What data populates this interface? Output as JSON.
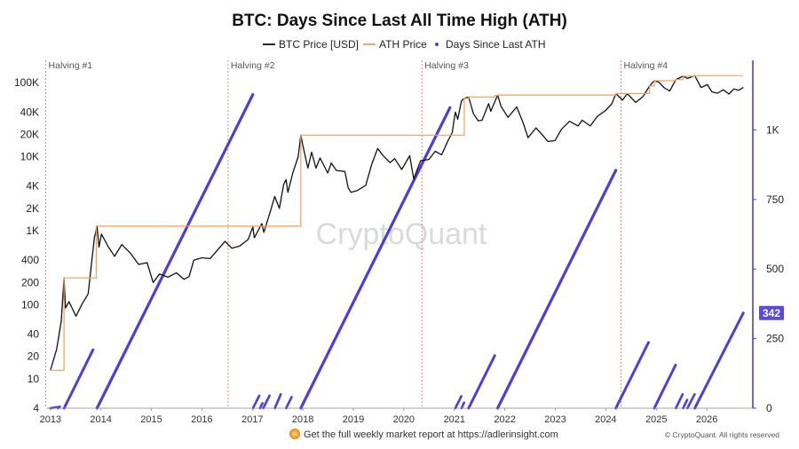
{
  "chart_data": {
    "type": "line",
    "title": "BTC: Days Since Last All Time High (ATH)",
    "legend": {
      "placement": "top-center",
      "items": [
        {
          "label": "BTC Price [USD]",
          "color": "#111111",
          "style": "line"
        },
        {
          "label": "ATH Price",
          "color": "#f0a060",
          "style": "line"
        },
        {
          "label": "Days Since Last ATH",
          "color": "#4a3fd8",
          "style": "dot"
        }
      ]
    },
    "x_axis": {
      "type": "time",
      "range": [
        "2012-12-01",
        "2026-11-30"
      ],
      "ticks": [
        "2013",
        "2014",
        "2015",
        "2016",
        "2017",
        "2018",
        "2019",
        "2020",
        "2021",
        "2022",
        "2023",
        "2024",
        "2025",
        "2026"
      ]
    },
    "y_left": {
      "scale": "log",
      "range": [
        4,
        200000
      ],
      "ticks": [
        4,
        10,
        20,
        40,
        100,
        200,
        400,
        1000,
        2000,
        4000,
        10000,
        20000,
        40000,
        100000
      ],
      "tick_labels": [
        "4",
        "10",
        "20",
        "40",
        "100",
        "200",
        "400",
        "1K",
        "2K",
        "4K",
        "10K",
        "20K",
        "40K",
        "100K"
      ]
    },
    "y_right": {
      "scale": "linear",
      "range": [
        0,
        1250
      ],
      "ticks": [
        0,
        250,
        500,
        750,
        1000
      ],
      "tick_labels": [
        "0",
        "250",
        "500",
        "750",
        "1K"
      ]
    },
    "halvings": [
      {
        "label": "Halving #1",
        "date": "2012-11-28"
      },
      {
        "label": "Halving #2",
        "date": "2016-07-09"
      },
      {
        "label": "Halving #3",
        "date": "2020-05-11"
      },
      {
        "label": "Halving #4",
        "date": "2024-04-20"
      }
    ],
    "current_value_badge": "342",
    "series": [
      {
        "name": "BTC Price [USD]",
        "x": [
          "2013-01-01",
          "2013-02-15",
          "2013-03-20",
          "2013-04-09",
          "2013-04-20",
          "2013-05-15",
          "2013-07-05",
          "2013-08-15",
          "2013-10-01",
          "2013-11-15",
          "2013-12-04",
          "2013-12-18",
          "2014-01-05",
          "2014-02-25",
          "2014-04-10",
          "2014-06-01",
          "2014-08-01",
          "2014-10-01",
          "2014-12-01",
          "2015-01-14",
          "2015-03-01",
          "2015-05-01",
          "2015-07-01",
          "2015-08-25",
          "2015-10-01",
          "2015-11-04",
          "2016-01-01",
          "2016-03-01",
          "2016-06-17",
          "2016-08-05",
          "2016-10-01",
          "2016-12-01",
          "2017-01-04",
          "2017-01-15",
          "2017-03-10",
          "2017-03-25",
          "2017-05-10",
          "2017-06-11",
          "2017-07-15",
          "2017-08-15",
          "2017-09-01",
          "2017-09-15",
          "2017-10-20",
          "2017-11-28",
          "2017-12-17",
          "2018-01-01",
          "2018-02-06",
          "2018-03-05",
          "2018-04-06",
          "2018-05-05",
          "2018-06-30",
          "2018-07-25",
          "2018-09-01",
          "2018-11-01",
          "2018-11-25",
          "2018-12-15",
          "2019-02-01",
          "2019-04-01",
          "2019-05-15",
          "2019-06-26",
          "2019-08-01",
          "2019-09-24",
          "2019-10-27",
          "2019-12-17",
          "2020-02-13",
          "2020-03-13",
          "2020-05-01",
          "2020-07-01",
          "2020-08-15",
          "2020-10-01",
          "2020-11-15",
          "2020-12-16",
          "2021-01-08",
          "2021-01-25",
          "2021-02-21",
          "2021-03-13",
          "2021-04-14",
          "2021-05-19",
          "2021-06-22",
          "2021-07-20",
          "2021-09-06",
          "2021-09-21",
          "2021-11-10",
          "2021-12-04",
          "2022-01-24",
          "2022-03-28",
          "2022-05-12",
          "2022-06-18",
          "2022-08-14",
          "2022-10-01",
          "2022-11-09",
          "2022-12-30",
          "2023-02-15",
          "2023-04-14",
          "2023-06-15",
          "2023-07-14",
          "2023-09-11",
          "2023-11-01",
          "2023-12-31",
          "2024-02-15",
          "2024-03-14",
          "2024-05-01",
          "2024-06-05",
          "2024-08-05",
          "2024-09-27",
          "2024-11-13",
          "2024-12-17",
          "2025-01-20",
          "2025-02-28",
          "2025-04-08",
          "2025-05-22",
          "2025-07-14",
          "2025-08-14",
          "2025-10-06",
          "2025-11-20",
          "2026-01-05",
          "2026-02-06",
          "2026-03-20",
          "2026-05-01",
          "2026-06-10",
          "2026-07-15",
          "2026-08-20",
          "2026-09-22"
        ],
        "values": [
          13,
          25,
          60,
          230,
          90,
          110,
          70,
          100,
          140,
          800,
          1150,
          600,
          900,
          600,
          450,
          650,
          500,
          350,
          370,
          200,
          260,
          235,
          270,
          220,
          240,
          400,
          430,
          420,
          720,
          580,
          620,
          760,
          1120,
          800,
          1250,
          950,
          1800,
          2900,
          2000,
          4200,
          4900,
          3300,
          6000,
          10000,
          19500,
          14000,
          7000,
          11500,
          7000,
          9600,
          6000,
          8200,
          6500,
          6300,
          3800,
          3300,
          3500,
          4100,
          8000,
          12900,
          10500,
          8300,
          9400,
          6700,
          10300,
          5000,
          8800,
          9200,
          11800,
          10600,
          16300,
          21000,
          40000,
          32000,
          57000,
          61000,
          64000,
          38000,
          30500,
          31000,
          52000,
          41000,
          68000,
          48000,
          34000,
          47000,
          29000,
          18000,
          24500,
          19500,
          16000,
          16500,
          23500,
          30000,
          26000,
          31000,
          26000,
          35000,
          42000,
          52000,
          71000,
          58000,
          71000,
          54000,
          65000,
          90000,
          106000,
          101000,
          85000,
          77000,
          110000,
          122000,
          114000,
          124000,
          86000,
          94000,
          75000,
          72000,
          80000,
          70000,
          82000,
          79000,
          86000
        ]
      },
      {
        "name": "ATH Price",
        "x": [
          "2013-01-01",
          "2013-04-09",
          "2013-11-28",
          "2013-12-04",
          "2017-01-04",
          "2017-12-17",
          "2020-12-16",
          "2021-03-13",
          "2021-04-14",
          "2021-10-20",
          "2021-11-10",
          "2024-03-14",
          "2024-11-13",
          "2024-12-17",
          "2025-05-22",
          "2025-07-14",
          "2025-10-06",
          "2026-09-22"
        ],
        "values": [
          13,
          230,
          1150,
          1150,
          1150,
          19500,
          19500,
          61000,
          64000,
          67000,
          68000,
          71000,
          90000,
          106000,
          110000,
          122000,
          124000,
          124000
        ]
      },
      {
        "name": "Days Since Last ATH",
        "segments": [
          {
            "start": "2013-01-01",
            "end": "2013-02-20",
            "max_days": 4
          },
          {
            "start": "2013-02-25",
            "end": "2013-03-10",
            "max_days": 6
          },
          {
            "start": "2013-04-10",
            "end": "2013-11-05",
            "max_days": 210
          },
          {
            "start": "2013-12-04",
            "end": "2017-01-04",
            "max_days": 1127
          },
          {
            "start": "2017-01-05",
            "end": "2017-02-20",
            "max_days": 45
          },
          {
            "start": "2017-02-25",
            "end": "2017-03-15",
            "max_days": 18
          },
          {
            "start": "2017-03-20",
            "end": "2017-05-05",
            "max_days": 45
          },
          {
            "start": "2017-06-12",
            "end": "2017-07-25",
            "max_days": 50
          },
          {
            "start": "2017-09-02",
            "end": "2017-10-12",
            "max_days": 40
          },
          {
            "start": "2017-12-17",
            "end": "2020-11-30",
            "max_days": 1080
          },
          {
            "start": "2021-01-08",
            "end": "2021-02-20",
            "max_days": 43
          },
          {
            "start": "2021-02-22",
            "end": "2021-03-12",
            "max_days": 20
          },
          {
            "start": "2021-04-14",
            "end": "2021-10-20",
            "max_days": 189
          },
          {
            "start": "2021-11-10",
            "end": "2024-03-14",
            "max_days": 855
          },
          {
            "start": "2024-03-14",
            "end": "2024-11-05",
            "max_days": 236
          },
          {
            "start": "2024-12-17",
            "end": "2025-05-20",
            "max_days": 155
          },
          {
            "start": "2025-05-22",
            "end": "2025-07-10",
            "max_days": 50
          },
          {
            "start": "2025-07-14",
            "end": "2025-08-12",
            "max_days": 30
          },
          {
            "start": "2025-08-14",
            "end": "2025-10-05",
            "max_days": 50
          },
          {
            "start": "2025-10-06",
            "end": "2026-09-22",
            "max_days": 342
          }
        ]
      }
    ]
  },
  "watermark": "CryptoQuant",
  "footer": {
    "icon": "coin-icon",
    "promo_text": "Get the full weekly market report at https://adlerinsight.com",
    "copyright": "© CryptoQuant. All rights reserved"
  },
  "colors": {
    "price": "#111111",
    "ath": "#f0a060",
    "days": "#4a3fd8",
    "halving": "#d46a6a",
    "badge": "#5a48e0"
  }
}
